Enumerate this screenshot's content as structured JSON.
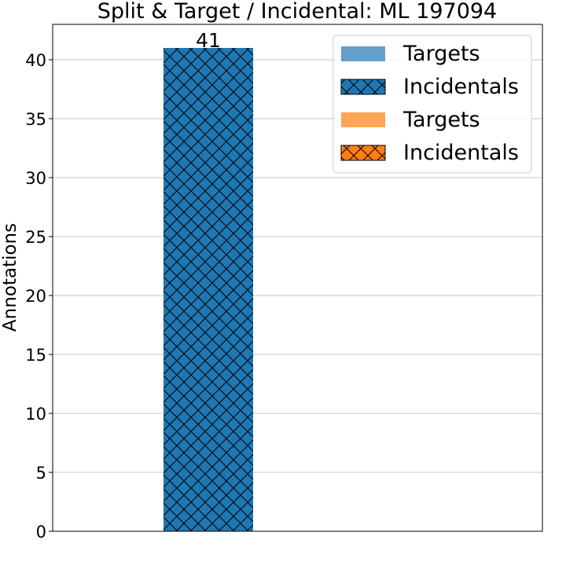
{
  "chart_data": {
    "type": "bar",
    "title": "Split & Target / Incidental: ML 197094",
    "xlabel": "",
    "ylabel": "Annotations",
    "ylim": [
      0,
      43
    ],
    "yticks": [
      0,
      5,
      10,
      15,
      20,
      25,
      30,
      35,
      40
    ],
    "grid": "horizontal",
    "legend_position": "top-right",
    "categories": [
      "",
      ""
    ],
    "series": [
      {
        "name": "Targets",
        "values": [
          0,
          0
        ],
        "color": "#1f77b4",
        "hatch": "none",
        "opacity": 0.7
      },
      {
        "name": "Incidentals",
        "values": [
          41,
          0
        ],
        "color": "#1f77b4",
        "hatch": "crosshatch",
        "opacity": 1
      },
      {
        "name": "Targets",
        "values": [
          0,
          0
        ],
        "color": "#ff7f0e",
        "hatch": "none",
        "opacity": 0.7
      },
      {
        "name": "Incidentals",
        "values": [
          0,
          0
        ],
        "color": "#ff7f0e",
        "hatch": "crosshatch",
        "opacity": 1
      }
    ],
    "data_labels": [
      {
        "category_index": 0,
        "text": "41",
        "value": 41
      }
    ]
  }
}
